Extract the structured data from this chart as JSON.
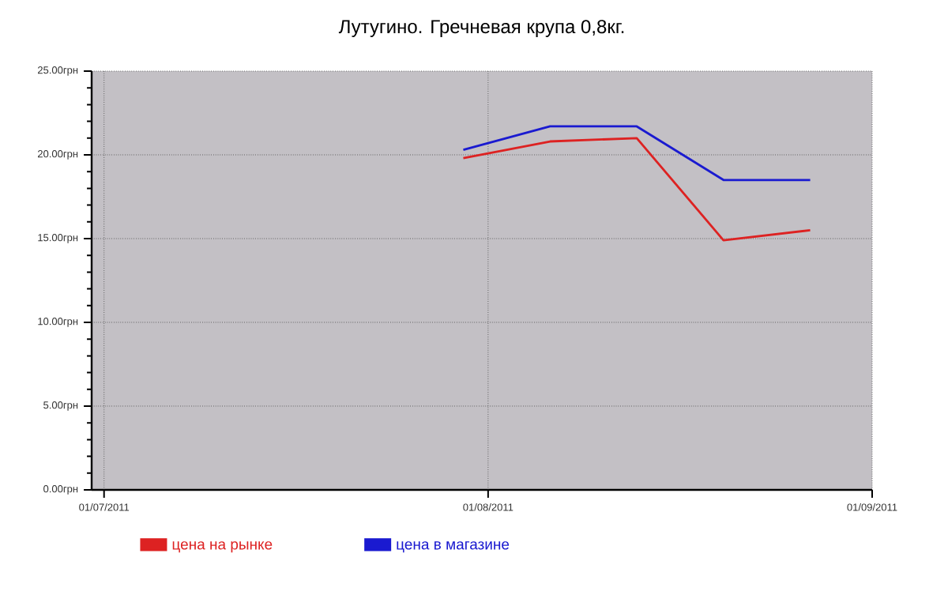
{
  "chart_data": {
    "type": "line",
    "title": "Лутугино. Гречневая крупа 0,8кг.",
    "x": [
      "2011-07-30",
      "2011-08-06",
      "2011-08-13",
      "2011-08-20",
      "2011-08-27"
    ],
    "series": [
      {
        "name": "цена на рынке",
        "color": "#dd2222",
        "values": [
          19.8,
          20.8,
          21.0,
          14.9,
          15.5
        ]
      },
      {
        "name": "цена в магазине",
        "color": "#1a1ad0",
        "values": [
          20.3,
          21.7,
          21.7,
          18.5,
          18.5
        ]
      }
    ],
    "xlim": [
      "2011-06-30",
      "2011-09-01"
    ],
    "xticks": [
      {
        "value": "2011-07-01",
        "label": "01/07/2011"
      },
      {
        "value": "2011-08-01",
        "label": "01/08/2011"
      },
      {
        "value": "2011-09-01",
        "label": "01/09/2011"
      }
    ],
    "ylim": [
      0,
      25
    ],
    "yticks": [
      {
        "value": 0,
        "label": "0.00грн"
      },
      {
        "value": 5,
        "label": "5.00грн"
      },
      {
        "value": 10,
        "label": "10.00грн"
      },
      {
        "value": 15,
        "label": "15.00грн"
      },
      {
        "value": 20,
        "label": "20.00грн"
      },
      {
        "value": 25,
        "label": "25.00грн"
      }
    ],
    "grid": true,
    "legend": "bottom left",
    "marker": "none",
    "line_style": "solid"
  }
}
